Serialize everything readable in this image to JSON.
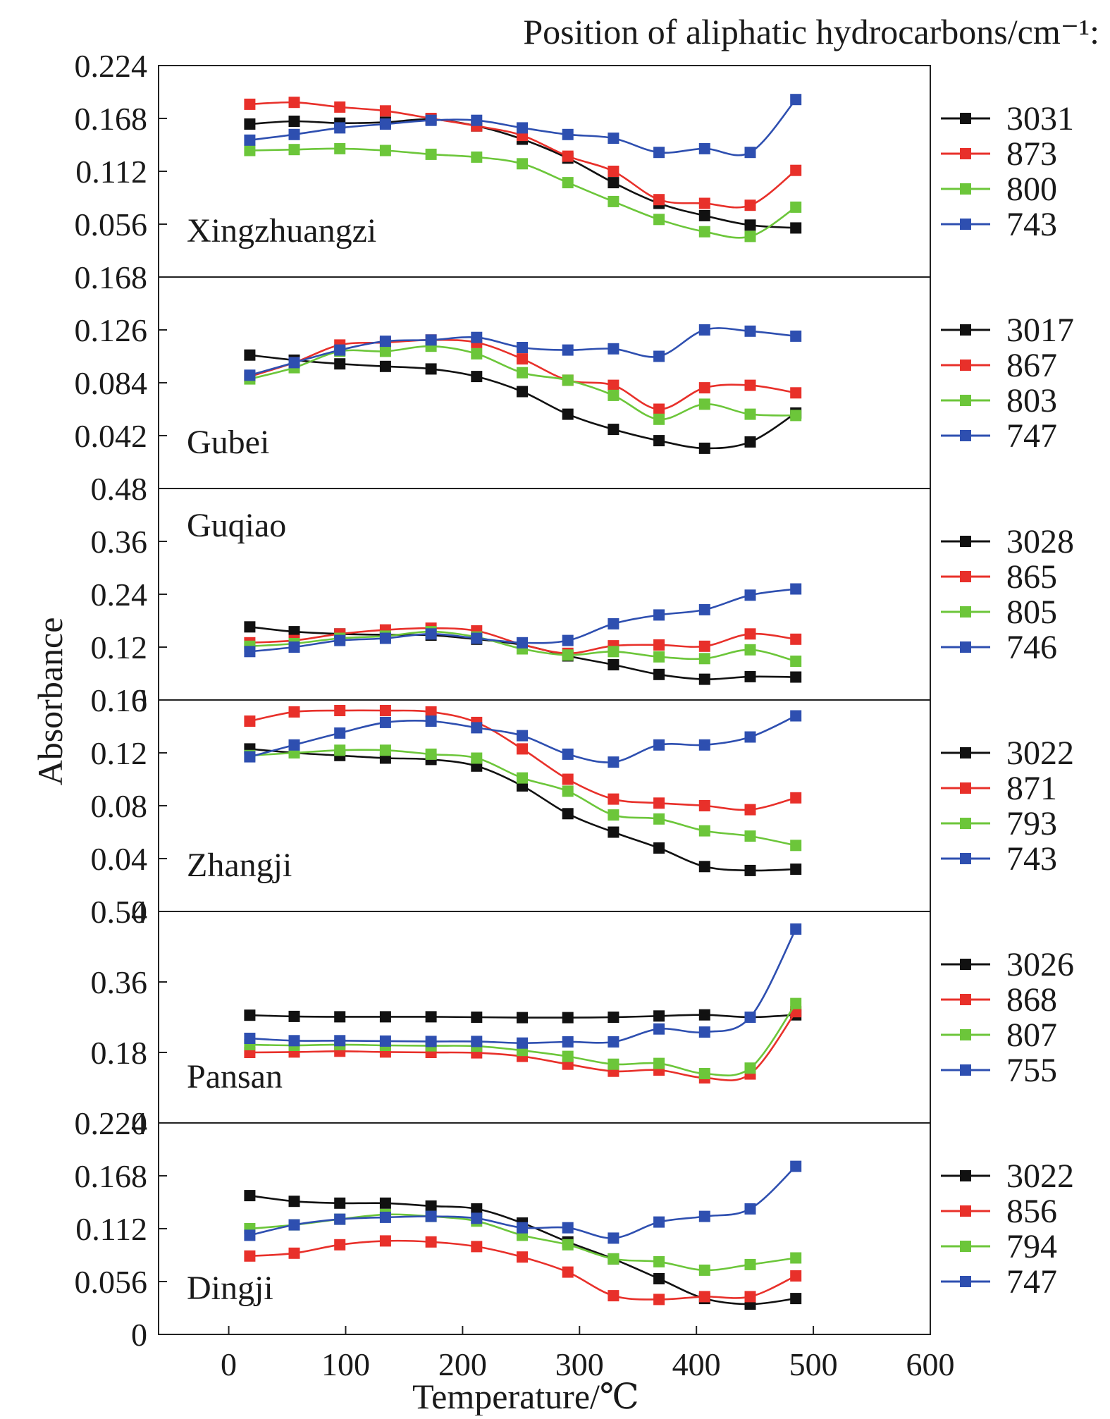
{
  "header": {
    "title": "Position of aliphatic hydrocarbons/cm⁻¹:"
  },
  "chart_data": {
    "type": "line",
    "xlabel": "Temperature/℃",
    "ylabel": "Absorbance",
    "xlim": [
      -60,
      600
    ],
    "xticks": [
      "0",
      "100",
      "200",
      "300",
      "400",
      "500",
      "600"
    ],
    "x": [
      18,
      56,
      95,
      134,
      173,
      212,
      251,
      290,
      329,
      368,
      407,
      446,
      485
    ],
    "colors": [
      "#111111",
      "#e8302a",
      "#6cc63a",
      "#2e4fb0"
    ],
    "legend_position": "right",
    "panels": [
      {
        "label": "Xingzhuangzi",
        "ylim": [
          0,
          0.224
        ],
        "yticks": [
          "0.056",
          "0.112",
          "0.168",
          "0.224"
        ],
        "series": [
          {
            "name": "3031",
            "values": [
              0.162,
              0.165,
              0.163,
              0.164,
              0.167,
              0.16,
              0.146,
              0.126,
              0.1,
              0.078,
              0.065,
              0.055,
              0.052
            ]
          },
          {
            "name": "873",
            "values": [
              0.183,
              0.185,
              0.18,
              0.176,
              0.168,
              0.16,
              0.15,
              0.128,
              0.112,
              0.082,
              0.078,
              0.076,
              0.113
            ]
          },
          {
            "name": "800",
            "values": [
              0.134,
              0.135,
              0.136,
              0.134,
              0.13,
              0.127,
              0.12,
              0.1,
              0.08,
              0.061,
              0.048,
              0.043,
              0.074
            ]
          },
          {
            "name": "743",
            "values": [
              0.145,
              0.151,
              0.158,
              0.162,
              0.166,
              0.166,
              0.158,
              0.151,
              0.147,
              0.132,
              0.136,
              0.132,
              0.188
            ]
          }
        ]
      },
      {
        "label": "Gubei",
        "ylim": [
          0,
          0.168
        ],
        "yticks": [
          "0.042",
          "0.084",
          "0.126",
          "0.168"
        ],
        "series": [
          {
            "name": "3017",
            "values": [
              0.106,
              0.102,
              0.099,
              0.097,
              0.095,
              0.089,
              0.077,
              0.059,
              0.047,
              0.038,
              0.032,
              0.037,
              0.06
            ]
          },
          {
            "name": "867",
            "values": [
              0.089,
              0.1,
              0.114,
              0.116,
              0.118,
              0.116,
              0.103,
              0.086,
              0.082,
              0.063,
              0.08,
              0.082,
              0.076
            ]
          },
          {
            "name": "803",
            "values": [
              0.087,
              0.096,
              0.109,
              0.109,
              0.113,
              0.107,
              0.092,
              0.086,
              0.074,
              0.055,
              0.067,
              0.059,
              0.058
            ]
          },
          {
            "name": "747",
            "values": [
              0.09,
              0.1,
              0.11,
              0.117,
              0.118,
              0.12,
              0.112,
              0.11,
              0.111,
              0.105,
              0.126,
              0.125,
              0.121
            ]
          }
        ]
      },
      {
        "label": "Guqiao",
        "ylim": [
          0,
          0.48
        ],
        "yticks": [
          "0",
          "0.12",
          "0.24",
          "0.36",
          "0.48"
        ],
        "series": [
          {
            "name": "3028",
            "values": [
              0.166,
              0.155,
              0.15,
              0.148,
              0.147,
              0.138,
              0.125,
              0.1,
              0.08,
              0.058,
              0.047,
              0.053,
              0.052
            ]
          },
          {
            "name": "865",
            "values": [
              0.13,
              0.135,
              0.15,
              0.159,
              0.163,
              0.157,
              0.126,
              0.106,
              0.123,
              0.125,
              0.122,
              0.15,
              0.138
            ]
          },
          {
            "name": "805",
            "values": [
              0.122,
              0.128,
              0.14,
              0.145,
              0.155,
              0.143,
              0.116,
              0.102,
              0.11,
              0.098,
              0.094,
              0.114,
              0.088
            ]
          },
          {
            "name": "746",
            "values": [
              0.11,
              0.12,
              0.135,
              0.14,
              0.15,
              0.14,
              0.13,
              0.135,
              0.173,
              0.193,
              0.205,
              0.238,
              0.252
            ]
          }
        ]
      },
      {
        "label": "Zhangji",
        "ylim": [
          0,
          0.16
        ],
        "yticks": [
          "0",
          "0.04",
          "0.08",
          "0.12",
          "0.16"
        ],
        "series": [
          {
            "name": "3022",
            "values": [
              0.123,
              0.12,
              0.118,
              0.116,
              0.115,
              0.11,
              0.095,
              0.074,
              0.06,
              0.048,
              0.034,
              0.031,
              0.032
            ]
          },
          {
            "name": "871",
            "values": [
              0.144,
              0.151,
              0.152,
              0.152,
              0.151,
              0.143,
              0.123,
              0.1,
              0.085,
              0.082,
              0.08,
              0.077,
              0.086
            ]
          },
          {
            "name": "793",
            "values": [
              0.118,
              0.12,
              0.122,
              0.122,
              0.119,
              0.116,
              0.101,
              0.091,
              0.073,
              0.07,
              0.061,
              0.057,
              0.05
            ]
          },
          {
            "name": "743",
            "values": [
              0.117,
              0.126,
              0.135,
              0.143,
              0.144,
              0.139,
              0.133,
              0.119,
              0.113,
              0.126,
              0.126,
              0.132,
              0.148
            ]
          }
        ]
      },
      {
        "label": "Pansan",
        "ylim": [
          0,
          0.54
        ],
        "yticks": [
          "0",
          "0.18",
          "0.36",
          "0.54"
        ],
        "series": [
          {
            "name": "3026",
            "values": [
              0.275,
              0.272,
              0.271,
              0.271,
              0.271,
              0.27,
              0.269,
              0.269,
              0.27,
              0.273,
              0.276,
              0.27,
              0.276
            ]
          },
          {
            "name": "868",
            "values": [
              0.18,
              0.181,
              0.183,
              0.181,
              0.18,
              0.179,
              0.17,
              0.15,
              0.132,
              0.135,
              0.115,
              0.125,
              0.284
            ]
          },
          {
            "name": "807",
            "values": [
              0.2,
              0.198,
              0.2,
              0.198,
              0.197,
              0.196,
              0.185,
              0.17,
              0.15,
              0.152,
              0.126,
              0.14,
              0.305
            ]
          },
          {
            "name": "755",
            "values": [
              0.216,
              0.21,
              0.21,
              0.209,
              0.208,
              0.208,
              0.204,
              0.207,
              0.207,
              0.24,
              0.232,
              0.27,
              0.495
            ]
          }
        ]
      },
      {
        "label": "Dingji",
        "ylim": [
          0,
          0.224
        ],
        "yticks": [
          "0",
          "0.056",
          "0.112",
          "0.168",
          "0.224"
        ],
        "series": [
          {
            "name": "3022",
            "values": [
              0.147,
              0.141,
              0.139,
              0.139,
              0.136,
              0.133,
              0.118,
              0.098,
              0.08,
              0.059,
              0.038,
              0.032,
              0.038
            ]
          },
          {
            "name": "856",
            "values": [
              0.083,
              0.086,
              0.095,
              0.099,
              0.098,
              0.093,
              0.082,
              0.066,
              0.041,
              0.037,
              0.04,
              0.04,
              0.062
            ]
          },
          {
            "name": "794",
            "values": [
              0.112,
              0.116,
              0.122,
              0.127,
              0.125,
              0.12,
              0.105,
              0.095,
              0.08,
              0.077,
              0.068,
              0.074,
              0.081
            ]
          },
          {
            "name": "747",
            "values": [
              0.105,
              0.116,
              0.122,
              0.124,
              0.125,
              0.123,
              0.113,
              0.113,
              0.102,
              0.119,
              0.125,
              0.133,
              0.178
            ]
          }
        ]
      }
    ]
  }
}
